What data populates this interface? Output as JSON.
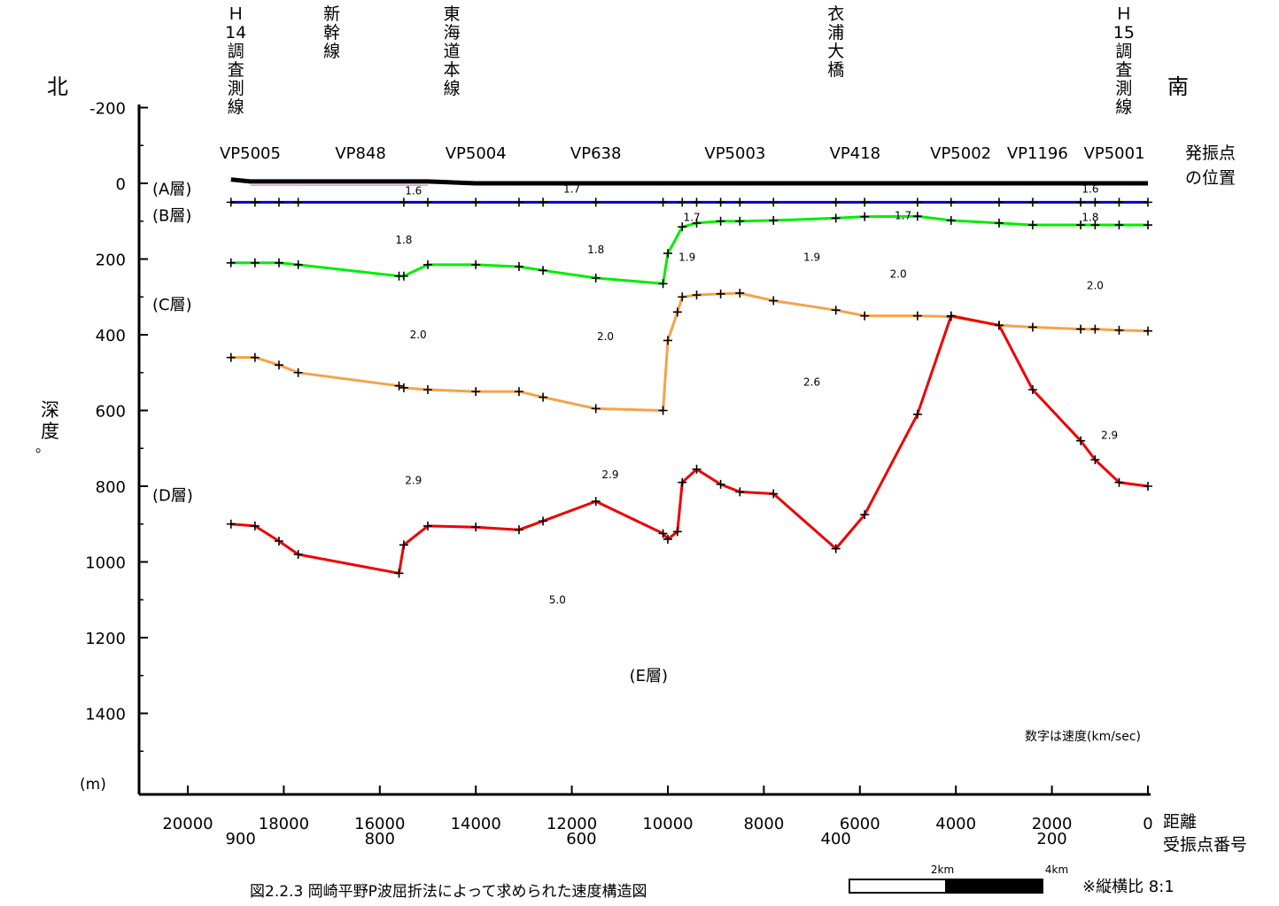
{
  "chart_data": {
    "type": "line",
    "title": "図2.2.3 岡崎平野P波屈折法によって求められた速度構造図",
    "compass": {
      "north": "北",
      "south": "南"
    },
    "ylabel": "深度",
    "ylabel_extra": "。",
    "y_unit": "(m)",
    "xlabel": "距離",
    "xlabel2": "受振点番号",
    "ylim": [
      -200,
      1600
    ],
    "xlim": [
      20000,
      0
    ],
    "y_ticks": [
      "-200",
      "0",
      "200",
      "400",
      "600",
      "800",
      "1000",
      "1200",
      "1400"
    ],
    "x_ticks": [
      "20000",
      "18000",
      "16000",
      "14000",
      "12000",
      "10000",
      "8000",
      "6000",
      "4000",
      "2000",
      "0"
    ],
    "receiver_ticks": [
      {
        "x": 18900,
        "label": "900"
      },
      {
        "x": 16000,
        "label": "800"
      },
      {
        "x": 11800,
        "label": "600"
      },
      {
        "x": 6500,
        "label": "400"
      },
      {
        "x": 2000,
        "label": "200"
      }
    ],
    "vertical_labels": [
      {
        "x": 19000,
        "text": "Ｈ14調査測線"
      },
      {
        "x": 17000,
        "text": "新幹線"
      },
      {
        "x": 14500,
        "text": "東海道本線"
      },
      {
        "x": 6500,
        "text": "衣浦大橋"
      },
      {
        "x": 500,
        "text": "Ｈ15調査測線"
      }
    ],
    "vibration_points_label": [
      "発振点",
      "の位置"
    ],
    "vibration_points": [
      {
        "x": 18700,
        "label": "VP5005"
      },
      {
        "x": 16400,
        "label": "VP848"
      },
      {
        "x": 14000,
        "label": "VP5004"
      },
      {
        "x": 11500,
        "label": "VP638"
      },
      {
        "x": 8600,
        "label": "VP5003"
      },
      {
        "x": 6100,
        "label": "VP418"
      },
      {
        "x": 3900,
        "label": "VP5002"
      },
      {
        "x": 2300,
        "label": "VP1196"
      },
      {
        "x": 700,
        "label": "VP5001"
      }
    ],
    "layer_labels": [
      {
        "text": "(A層)",
        "y": 15
      },
      {
        "text": "(B層)",
        "y": 85
      },
      {
        "text": "(C層)",
        "y": 320
      },
      {
        "text": "(D層)",
        "y": 825
      },
      {
        "text": "(E層)",
        "y": 1300,
        "x": 10800
      }
    ],
    "velocity_labels": [
      {
        "x": 15300,
        "y": 20,
        "text": "1.6"
      },
      {
        "x": 12000,
        "y": 15,
        "text": "1.7"
      },
      {
        "x": 9500,
        "y": 90,
        "text": "1.7"
      },
      {
        "x": 5100,
        "y": 85,
        "text": "1.7"
      },
      {
        "x": 1200,
        "y": 15,
        "text": "1.6"
      },
      {
        "x": 1200,
        "y": 90,
        "text": "1.8"
      },
      {
        "x": 15500,
        "y": 150,
        "text": "1.8"
      },
      {
        "x": 11500,
        "y": 175,
        "text": "1.8"
      },
      {
        "x": 9600,
        "y": 195,
        "text": "1.9"
      },
      {
        "x": 7000,
        "y": 195,
        "text": "1.9"
      },
      {
        "x": 5200,
        "y": 240,
        "text": "2.0"
      },
      {
        "x": 1100,
        "y": 270,
        "text": "2.0"
      },
      {
        "x": 15200,
        "y": 400,
        "text": "2.0"
      },
      {
        "x": 11300,
        "y": 405,
        "text": "2.0"
      },
      {
        "x": 7000,
        "y": 525,
        "text": "2.6"
      },
      {
        "x": 15300,
        "y": 785,
        "text": "2.9"
      },
      {
        "x": 11200,
        "y": 770,
        "text": "2.9"
      },
      {
        "x": 800,
        "y": 665,
        "text": "2.9"
      },
      {
        "x": 12300,
        "y": 1100,
        "text": "5.0"
      }
    ],
    "note": "数字は速度(km/sec)",
    "scale_bar": {
      "labels": [
        "2km",
        "4km"
      ]
    },
    "aspect_note": "※縦横比 8:1",
    "colors": {
      "surface": "#000000",
      "surface_thin": "#cc66cc",
      "A": "#0000cc",
      "B": "#00ee00",
      "C": "#f4a34a",
      "D": "#ee0000"
    },
    "series": [
      {
        "key": "surface",
        "x": [
          19100,
          18700,
          15000,
          14000,
          0
        ],
        "y": [
          -10,
          -5,
          -5,
          0,
          0
        ]
      },
      {
        "key": "A",
        "x": [
          19100,
          18600,
          18100,
          17700,
          15500,
          15000,
          14000,
          13100,
          12600,
          11500,
          10100,
          9700,
          9400,
          8900,
          8500,
          7800,
          6500,
          5900,
          4800,
          4100,
          3100,
          2400,
          1400,
          1100,
          600,
          0
        ],
        "y": [
          50,
          50,
          50,
          50,
          50,
          50,
          50,
          50,
          50,
          50,
          50,
          50,
          50,
          50,
          50,
          50,
          50,
          50,
          50,
          50,
          50,
          50,
          50,
          50,
          50,
          50
        ]
      },
      {
        "key": "B",
        "x": [
          19100,
          18600,
          18100,
          17700,
          15600,
          15500,
          15000,
          14000,
          13100,
          12600,
          11500,
          10100,
          10000,
          9700,
          9400,
          8900,
          8500,
          7800,
          6500,
          5900,
          4800,
          4100,
          3100,
          2400,
          1400,
          1100,
          600,
          0
        ],
        "y": [
          210,
          210,
          210,
          215,
          245,
          245,
          215,
          215,
          220,
          230,
          250,
          265,
          185,
          115,
          105,
          100,
          100,
          98,
          92,
          88,
          87,
          98,
          105,
          110,
          110,
          110,
          110,
          110
        ]
      },
      {
        "key": "C",
        "x": [
          19100,
          18600,
          18100,
          17700,
          15600,
          15500,
          15000,
          14000,
          13100,
          12600,
          11500,
          10100,
          10000,
          9800,
          9700,
          9400,
          8900,
          8500,
          7800,
          6500,
          5900,
          4800,
          4100,
          3100,
          2400,
          1400,
          1100,
          600,
          0
        ],
        "y": [
          460,
          460,
          480,
          500,
          535,
          540,
          545,
          550,
          550,
          565,
          595,
          600,
          415,
          340,
          300,
          295,
          292,
          290,
          310,
          335,
          350,
          350,
          352,
          375,
          380,
          385,
          385,
          388,
          390
        ]
      },
      {
        "key": "D",
        "x": [
          19100,
          18600,
          18100,
          17700,
          15600,
          15500,
          15000,
          14000,
          13100,
          12600,
          11500,
          10100,
          10000,
          9800,
          9700,
          9400,
          8900,
          8500,
          7800,
          6500,
          5900,
          4800,
          4100,
          3100,
          2400,
          1400,
          1100,
          600,
          0
        ],
        "y": [
          900,
          905,
          945,
          980,
          1030,
          955,
          905,
          908,
          915,
          892,
          840,
          925,
          940,
          920,
          790,
          755,
          795,
          815,
          820,
          965,
          875,
          610,
          350,
          375,
          545,
          680,
          730,
          790,
          800
        ]
      }
    ]
  }
}
